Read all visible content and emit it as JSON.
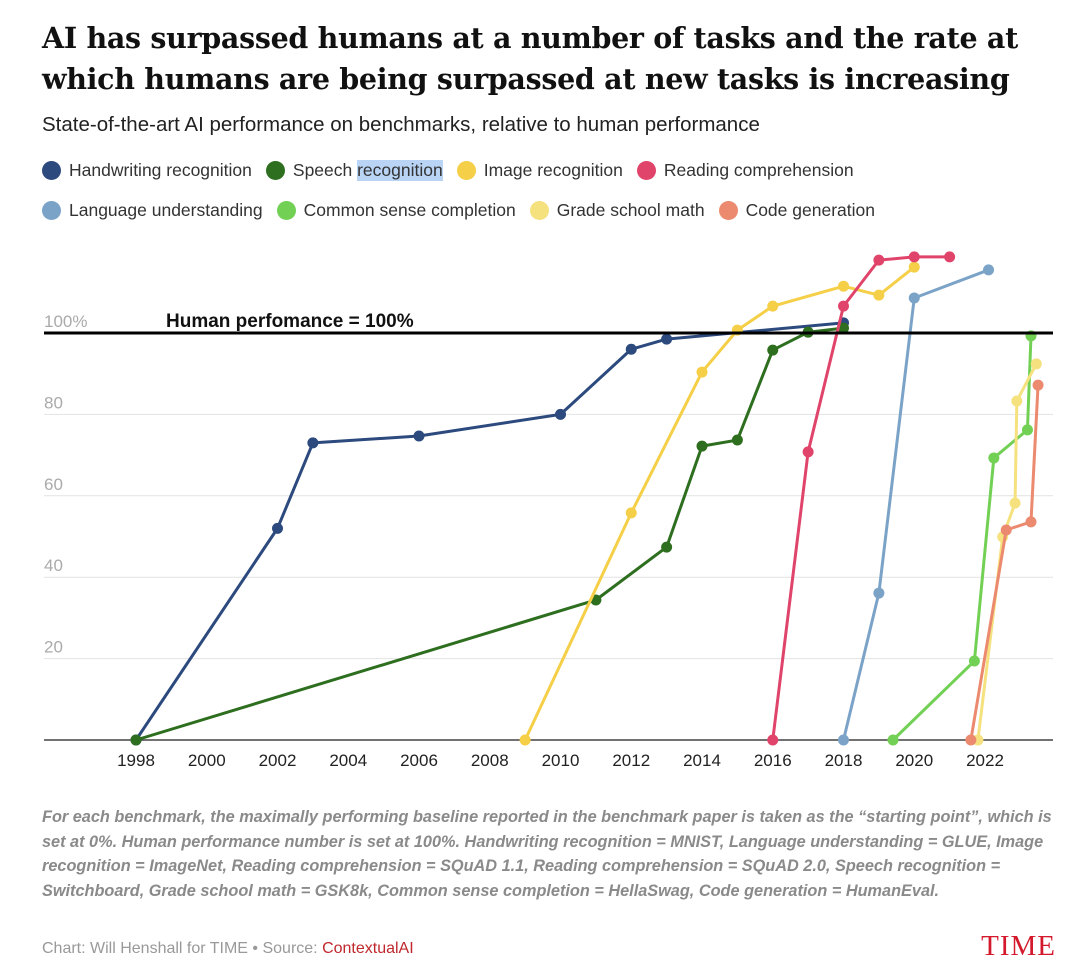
{
  "chart_data": {
    "type": "line",
    "title": "AI has surpassed humans at a number of tasks and the rate at which humans are being surpassed at new tasks is increasing",
    "subtitle": "State-of-the-art AI performance on benchmarks, relative to human performance",
    "xlabel": "",
    "ylabel": "",
    "xlim": [
      1998,
      2023.8
    ],
    "ylim": [
      0,
      122
    ],
    "x_ticks": [
      "1998",
      "2000",
      "2002",
      "2004",
      "2006",
      "2008",
      "2010",
      "2012",
      "2014",
      "2016",
      "2018",
      "2020",
      "2022"
    ],
    "y_ticks": [
      {
        "v": 100,
        "label": "100%"
      },
      {
        "v": 80,
        "label": "80"
      },
      {
        "v": 60,
        "label": "60"
      },
      {
        "v": 40,
        "label": "40"
      },
      {
        "v": 20,
        "label": "20"
      }
    ],
    "annotation": "Human perfomance = 100%",
    "series": [
      {
        "name": "Handwriting recognition",
        "color": "#2c4a7e",
        "x": [
          1998,
          2002,
          2003,
          2006,
          2010,
          2012,
          2013,
          2018
        ],
        "y": [
          0,
          52,
          73,
          74.7,
          80,
          96,
          98.5,
          102.5
        ]
      },
      {
        "name": "Speech recognition",
        "color": "#2d6e1f",
        "x": [
          1998,
          2011,
          2013,
          2014,
          2015,
          2016,
          2017,
          2018
        ],
        "y": [
          0,
          34.4,
          47.4,
          72.2,
          73.7,
          95.8,
          100.2,
          101.2
        ]
      },
      {
        "name": "Image recognition",
        "color": "#f5cf47",
        "x": [
          2009,
          2012,
          2014,
          2015,
          2016,
          2018,
          2019,
          2020
        ],
        "y": [
          0,
          55.8,
          90.4,
          100.7,
          106.6,
          111.5,
          109.3,
          116.2
        ]
      },
      {
        "name": "Reading comprehension",
        "color": "#e0446a",
        "x": [
          2016,
          2017,
          2018,
          2019,
          2020,
          2021
        ],
        "y": [
          0,
          70.8,
          106.6,
          117.9,
          118.7,
          118.7
        ]
      },
      {
        "name": "Language understanding",
        "color": "#7ba3c8",
        "x": [
          2018,
          2019,
          2020,
          2022.1
        ],
        "y": [
          0,
          36.1,
          108.6,
          115.5
        ]
      },
      {
        "name": "Common sense completion",
        "color": "#72d155",
        "x": [
          2019.4,
          2021.7,
          2022.25,
          2023.2,
          2023.3
        ],
        "y": [
          0,
          19.4,
          69.3,
          76.2,
          99.3
        ]
      },
      {
        "name": "Grade school math",
        "color": "#f6e17f",
        "x": [
          2021.8,
          2022.5,
          2022.85,
          2022.9,
          2023.45
        ],
        "y": [
          0,
          49.9,
          58.2,
          83.3,
          92.4
        ]
      },
      {
        "name": "Code generation",
        "color": "#eb8a6e",
        "x": [
          2021.6,
          2022.6,
          2023.3,
          2023.5
        ],
        "y": [
          0,
          51.6,
          53.6,
          87.2
        ]
      }
    ]
  },
  "legend": {
    "row1": [
      "Handwriting recognition",
      "Speech ",
      "Image recognition",
      "Reading comprehension"
    ],
    "speech_highlight": "recognition",
    "row2": [
      "Language understanding",
      "Common sense completion",
      "Grade school math",
      "Code generation"
    ]
  },
  "note": "For each benchmark, the maximally performing baseline reported in the benchmark paper is taken as the “starting point”, which is set at 0%. Human performance number is set at 100%. Handwriting recognition = MNIST, Language understanding = GLUE, Image recognition = ImageNet, Reading comprehension = SQuAD 1.1, Reading comprehension = SQuAD 2.0, Speech recognition = Switchboard, Grade school math = GSK8k, Common sense completion = HellaSwag, Code generation = HumanEval.",
  "footer": {
    "credit": "Chart: Will Henshall for TIME • Source: ",
    "source": "ContextualAI"
  },
  "logo": "TIME"
}
